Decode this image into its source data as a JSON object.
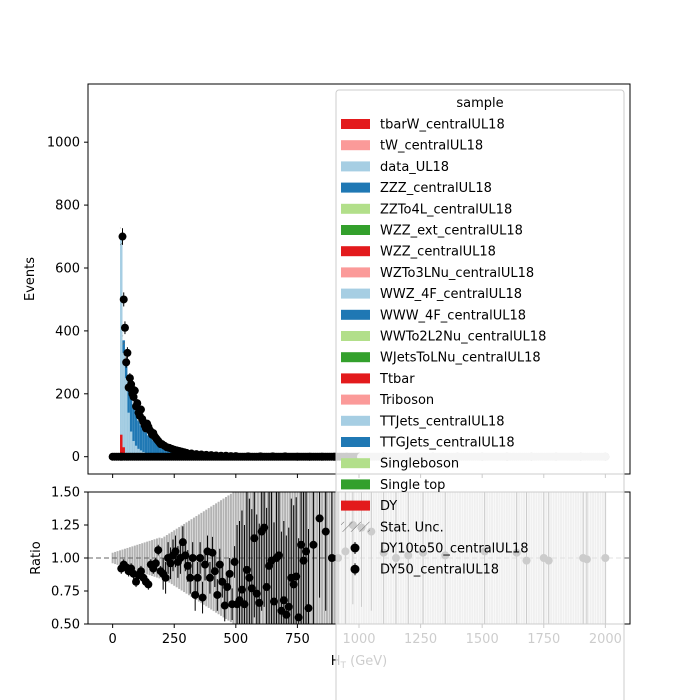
{
  "chart_data": [
    {
      "panel": "main",
      "type": "bar",
      "ylabel": "Events",
      "x_ticks": [
        0,
        250,
        500,
        750,
        1000,
        1250,
        1500,
        1750,
        2000
      ],
      "y_ticks": [
        0,
        200,
        400,
        600,
        800,
        1000
      ],
      "xlim": [
        -100,
        2100
      ],
      "ylim": [
        -55,
        1185
      ],
      "legend": {
        "title": "sample",
        "placement": "top-right",
        "entries": [
          {
            "label": "tbarW_centralUL18",
            "kind": "patch",
            "color": "#e31a1c"
          },
          {
            "label": "tW_centralUL18",
            "kind": "patch",
            "color": "#fb9a99"
          },
          {
            "label": "data_UL18",
            "kind": "patch",
            "color": "#a6cee3"
          },
          {
            "label": "ZZZ_centralUL18",
            "kind": "patch",
            "color": "#1f78b4"
          },
          {
            "label": "ZZTo4L_centralUL18",
            "kind": "patch",
            "color": "#b2df8a"
          },
          {
            "label": "WZZ_ext_centralUL18",
            "kind": "patch",
            "color": "#33a02c"
          },
          {
            "label": "WZZ_centralUL18",
            "kind": "patch",
            "color": "#e31a1c"
          },
          {
            "label": "WZTo3LNu_centralUL18",
            "kind": "patch",
            "color": "#fb9a99"
          },
          {
            "label": "WWZ_4F_centralUL18",
            "kind": "patch",
            "color": "#a6cee3"
          },
          {
            "label": "WWW_4F_centralUL18",
            "kind": "patch",
            "color": "#1f78b4"
          },
          {
            "label": "WWTo2L2Nu_centralUL18",
            "kind": "patch",
            "color": "#b2df8a"
          },
          {
            "label": "WJetsToLNu_centralUL18",
            "kind": "patch",
            "color": "#33a02c"
          },
          {
            "label": "Ttbar",
            "kind": "patch",
            "color": "#e31a1c"
          },
          {
            "label": "Triboson",
            "kind": "patch",
            "color": "#fb9a99"
          },
          {
            "label": "TTJets_centralUL18",
            "kind": "patch",
            "color": "#a6cee3"
          },
          {
            "label": "TTGJets_centralUL18",
            "kind": "patch",
            "color": "#1f78b4"
          },
          {
            "label": "Singleboson",
            "kind": "patch",
            "color": "#b2df8a"
          },
          {
            "label": "Single top",
            "kind": "patch",
            "color": "#33a02c"
          },
          {
            "label": "DY",
            "kind": "patch",
            "color": "#e31a1c"
          },
          {
            "label": "Stat. Unc.",
            "kind": "hatch",
            "color": "#888888"
          },
          {
            "label": "DY10to50_centralUL18",
            "kind": "marker",
            "color": "#000000"
          },
          {
            "label": "DY50_centralUL18",
            "kind": "marker",
            "color": "#000000"
          }
        ]
      },
      "series": [
        {
          "name": "TTGJets_centralUL18",
          "color": "#1f78b4",
          "x": [
            35,
            45,
            55,
            65,
            75,
            85,
            95,
            105,
            115,
            125,
            135,
            145,
            155,
            165,
            175,
            185,
            195,
            205,
            215,
            225,
            235,
            245,
            255,
            265,
            275,
            285,
            295,
            305,
            315,
            325,
            335,
            345,
            355,
            365,
            375,
            385,
            395,
            405,
            415,
            425,
            435,
            445,
            455,
            465,
            475,
            485,
            495,
            505,
            515,
            525,
            535,
            545,
            555,
            565,
            575,
            585,
            595,
            605,
            615,
            625,
            635,
            645,
            655,
            665,
            675,
            685,
            695,
            705,
            715,
            725,
            735,
            745,
            755,
            765,
            775,
            785,
            795
          ],
          "values": [
            400,
            370,
            300,
            240,
            195,
            160,
            135,
            115,
            100,
            88,
            77,
            68,
            60,
            52,
            45,
            40,
            35,
            31,
            28,
            25,
            22,
            20,
            18,
            16,
            14,
            13,
            12,
            11,
            10,
            9,
            8,
            7,
            7,
            6,
            6,
            5,
            5,
            4,
            4,
            4,
            3,
            3,
            3,
            3,
            2,
            2,
            2,
            2,
            2,
            2,
            1,
            1,
            1,
            1,
            1,
            1,
            1,
            1,
            1,
            1,
            1,
            1,
            1,
            1,
            1,
            1,
            1,
            1,
            1,
            1,
            1,
            1,
            1,
            1,
            1,
            1,
            1
          ]
        },
        {
          "name": "TTJets_centralUL18",
          "color": "#a6cee3",
          "x": [
            35,
            45,
            55,
            65,
            75,
            85,
            95,
            105,
            115,
            125,
            135,
            145,
            155,
            165,
            175,
            185,
            195,
            205,
            215,
            225,
            235,
            245,
            255,
            265,
            275,
            285,
            295
          ],
          "values": [
            700,
            330,
            250,
            140,
            80,
            50,
            35,
            25,
            20,
            15,
            12,
            10,
            8,
            7,
            6,
            5,
            4,
            4,
            3,
            3,
            3,
            2,
            2,
            2,
            2,
            1,
            1
          ]
        },
        {
          "name": "Ttbar",
          "color": "#e31a1c",
          "x": [
            35,
            45,
            55
          ],
          "values": [
            70,
            30,
            10
          ]
        }
      ],
      "data": {
        "name": "DY50_centralUL18",
        "x": [
          35,
          40,
          45,
          50,
          55,
          60,
          65,
          70,
          75,
          80,
          85,
          90,
          95,
          100,
          105,
          110,
          115,
          120,
          125,
          130,
          135,
          140,
          145,
          150,
          155,
          160,
          165,
          170,
          175,
          180,
          185,
          190,
          195,
          200,
          210,
          220,
          230,
          240,
          250,
          260,
          270,
          280,
          290,
          300,
          320,
          340,
          360,
          380,
          400,
          420,
          440,
          460,
          480,
          500,
          550,
          600,
          650,
          700,
          750,
          800,
          850,
          900,
          950,
          1000,
          1100,
          1200,
          1300,
          1400,
          1500,
          1600,
          1700,
          1800,
          1900,
          2000
        ],
        "values": [
          0,
          700,
          500,
          410,
          300,
          330,
          220,
          250,
          230,
          200,
          190,
          210,
          160,
          170,
          140,
          130,
          150,
          120,
          110,
          100,
          90,
          105,
          95,
          85,
          80,
          70,
          75,
          65,
          60,
          55,
          50,
          45,
          40,
          40,
          35,
          30,
          28,
          25,
          22,
          20,
          18,
          16,
          14,
          12,
          10,
          8,
          7,
          6,
          5,
          4,
          3,
          3,
          2,
          2,
          1,
          1,
          1,
          1,
          0,
          0,
          0,
          0,
          0,
          0,
          0,
          0,
          0,
          0,
          0,
          0,
          0,
          0,
          0,
          0
        ]
      }
    },
    {
      "panel": "ratio",
      "type": "scatter",
      "xlabel": "H_T (GeV)",
      "ylabel": "Ratio",
      "x_ticks": [
        0,
        250,
        500,
        750,
        1000,
        1250,
        1500,
        1750,
        2000
      ],
      "y_ticks": [
        0.5,
        0.75,
        1.0,
        1.25,
        1.5
      ],
      "y_tick_labels": [
        "0.50",
        "0.75",
        "1.00",
        "1.25",
        "1.50"
      ],
      "xlim": [
        -100,
        2100
      ],
      "ylim": [
        0.5,
        1.5
      ],
      "reference_line": 1.0,
      "points": {
        "x": [
          35,
          45,
          55,
          65,
          75,
          85,
          95,
          105,
          115,
          125,
          135,
          145,
          155,
          165,
          175,
          185,
          195,
          205,
          215,
          225,
          235,
          245,
          255,
          265,
          275,
          285,
          295,
          305,
          315,
          325,
          335,
          345,
          355,
          365,
          375,
          385,
          395,
          405,
          415,
          425,
          435,
          445,
          455,
          465,
          475,
          485,
          495,
          505,
          515,
          525,
          535,
          545,
          555,
          565,
          575,
          585,
          595,
          605,
          615,
          625,
          635,
          645,
          655,
          665,
          675,
          685,
          695,
          705,
          715,
          725,
          735,
          745,
          755,
          765,
          775,
          785,
          795,
          815,
          840,
          865,
          890,
          915,
          945,
          975,
          1010,
          1050,
          1100,
          1150,
          1200,
          1260,
          1350,
          1510,
          1640,
          1680,
          1750,
          1770,
          1910,
          1925,
          2000
        ],
        "values": [
          0.92,
          0.95,
          0.93,
          0.9,
          0.92,
          0.88,
          0.82,
          0.87,
          0.9,
          0.85,
          0.82,
          0.8,
          0.95,
          0.92,
          0.96,
          1.06,
          0.9,
          0.88,
          0.85,
          1.0,
          0.96,
          1.02,
          1.05,
          0.97,
          1.0,
          1.12,
          1.02,
          0.94,
          0.85,
          1.0,
          0.72,
          0.85,
          1.0,
          0.7,
          0.95,
          1.05,
          0.85,
          1.04,
          0.9,
          0.72,
          0.95,
          0.82,
          0.64,
          0.78,
          0.88,
          0.65,
          0.97,
          0.65,
          0.68,
          0.76,
          0.65,
          0.91,
          0.85,
          0.77,
          1.15,
          0.73,
          0.66,
          1.2,
          1.23,
          0.78,
          0.94,
          0.98,
          0.67,
          1.0,
          1.02,
          0.6,
          0.68,
          0.57,
          0.63,
          0.85,
          0.8,
          0.86,
          0.55,
          1.1,
          0.98,
          1.05,
          0.62,
          1.1,
          1.3,
          1.2,
          1.0,
          1.0,
          1.05,
          1.25,
          1.23,
          1.2,
          1.04,
          1.0,
          1.02,
          1.04,
          1.02,
          1.05,
          1.04,
          0.98,
          1.0,
          0.98,
          1.0,
          0.99,
          1.0
        ]
      }
    }
  ]
}
